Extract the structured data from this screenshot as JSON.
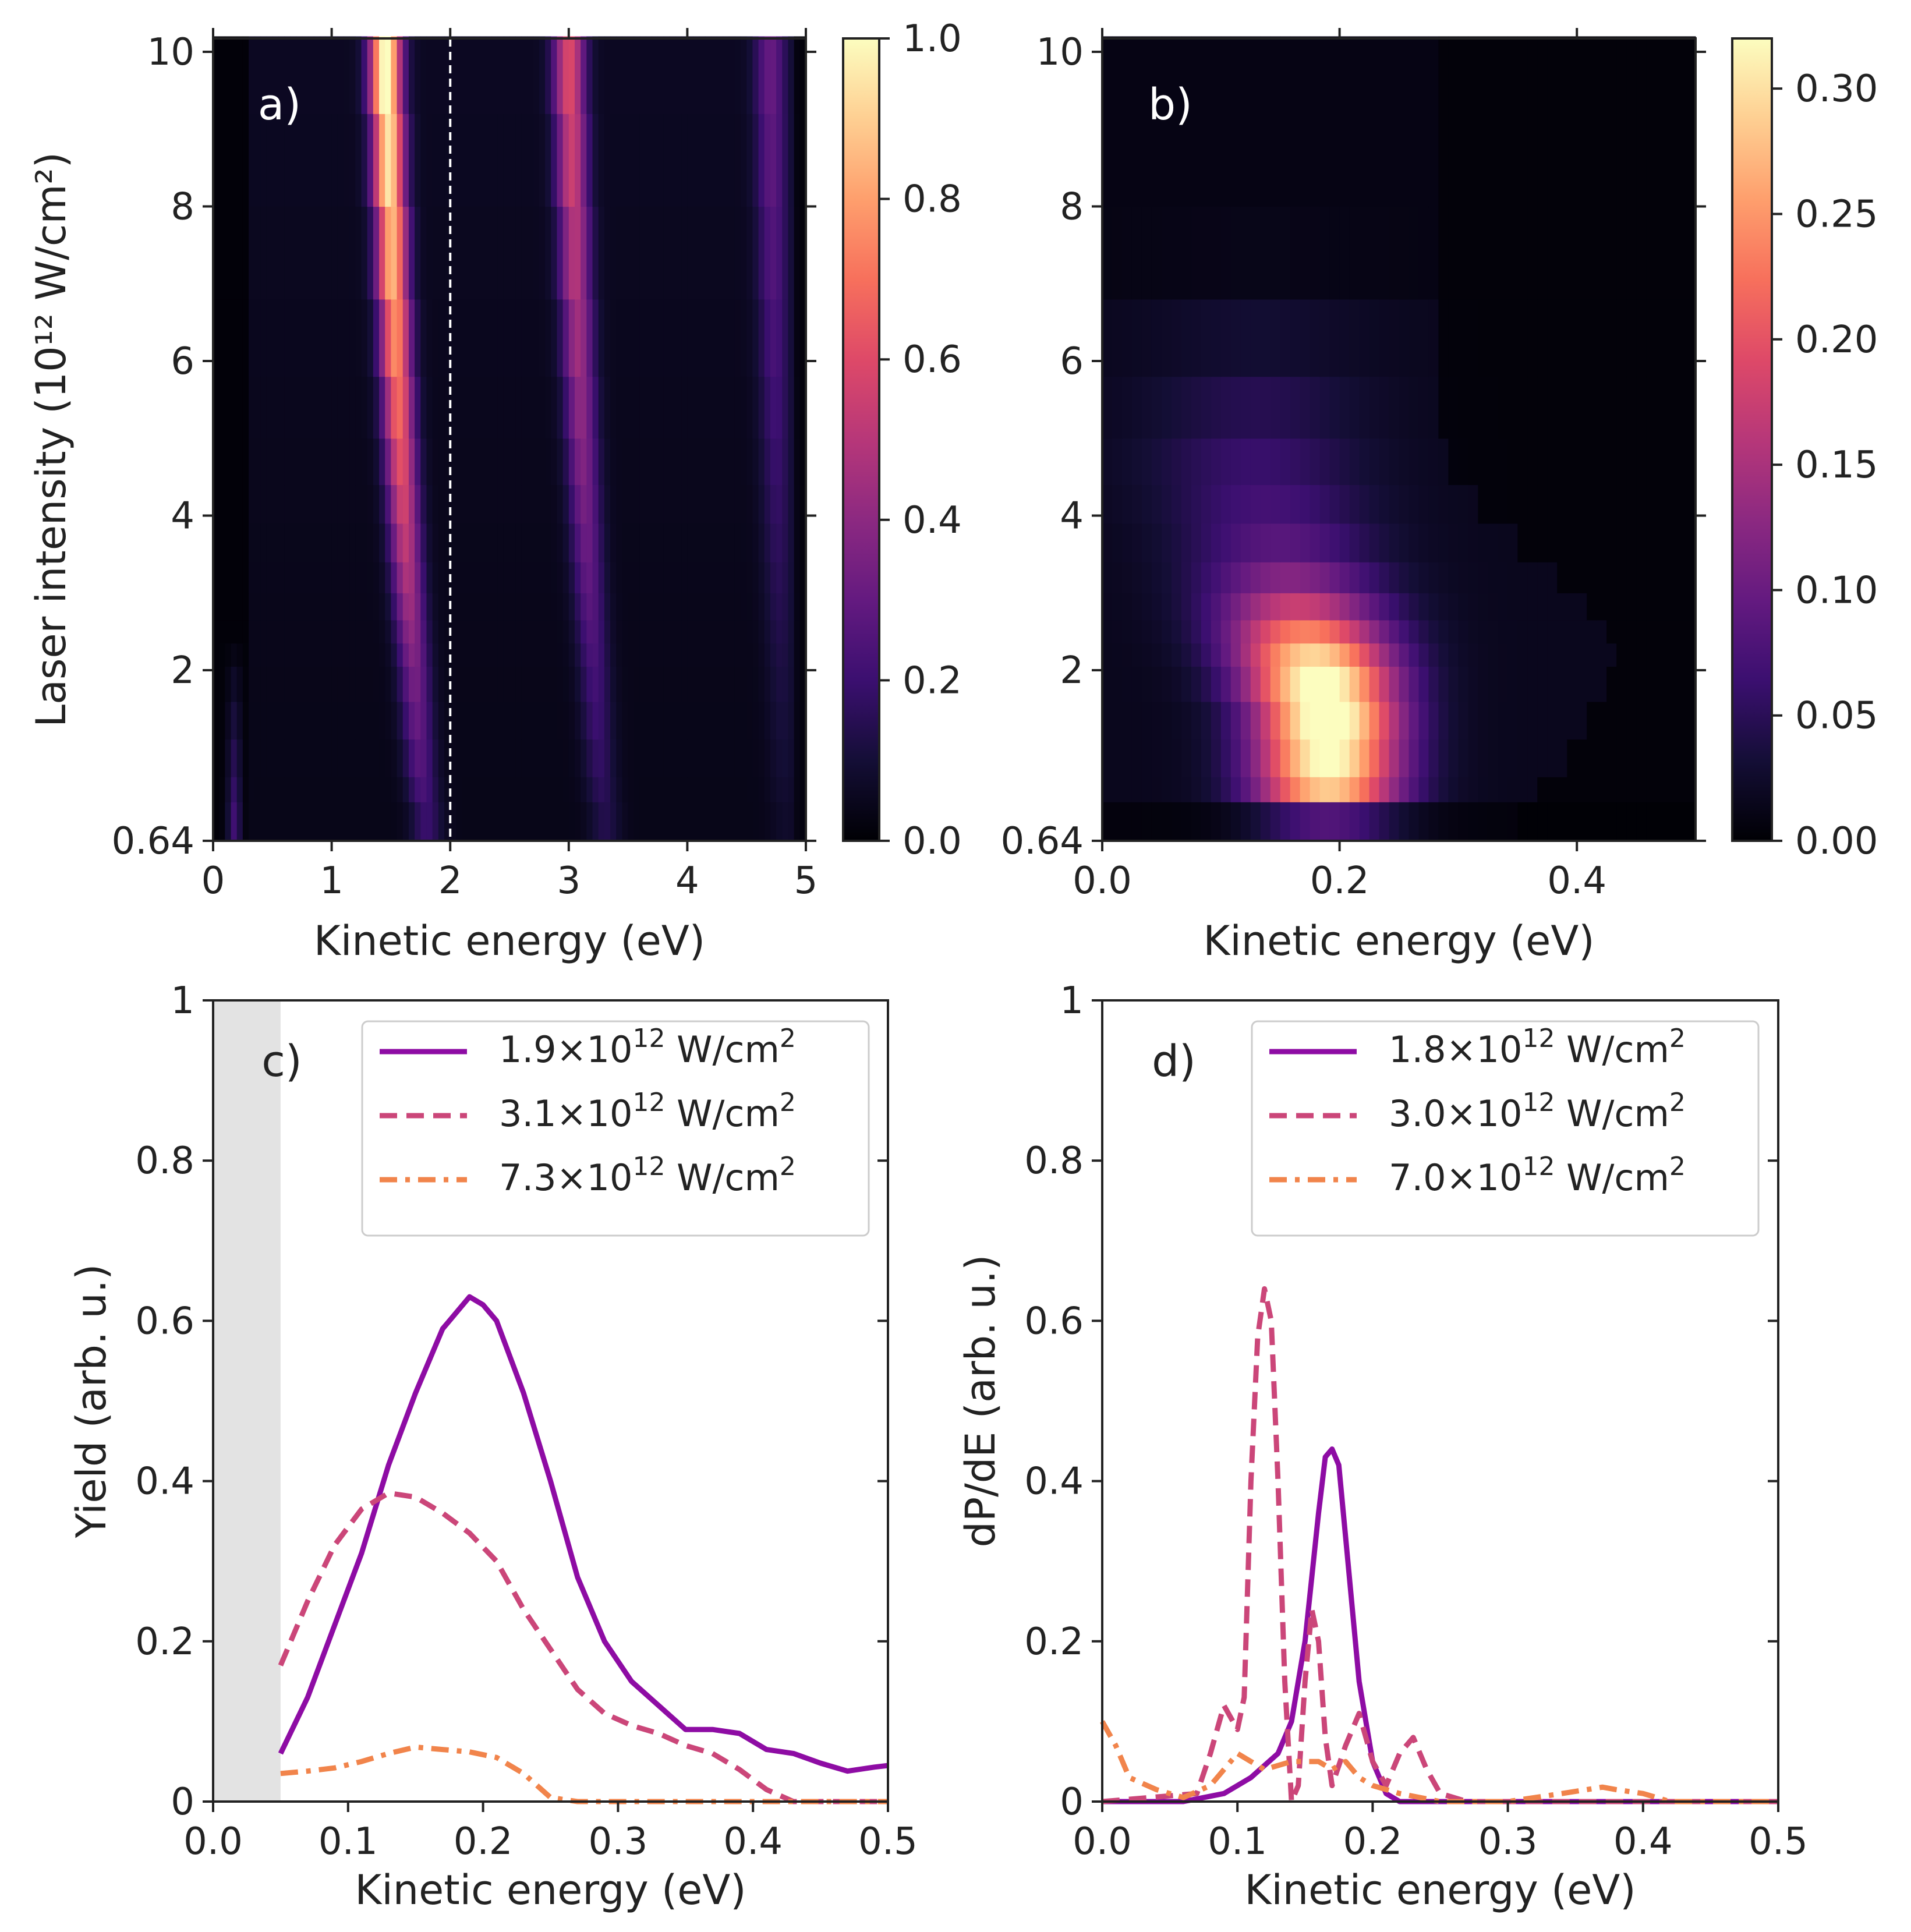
{
  "chart_data": [
    {
      "id": "a",
      "type": "heatmap",
      "panel_label": "a)",
      "xlabel": "Kinetic energy (eV)",
      "ylabel": "Laser intensity (10¹² W/cm²)",
      "xlim": [
        0,
        5
      ],
      "ylim": [
        0.64,
        10.2
      ],
      "xticks": [
        "0",
        "1",
        "2",
        "3",
        "4",
        "5"
      ],
      "yticks": [
        "0.64",
        "2",
        "4",
        "6",
        "8",
        "10"
      ],
      "marker_line_x": 2.0,
      "colorbar": {
        "min": 0,
        "max": 1.0,
        "ticks": [
          "0.0",
          "0.2",
          "0.4",
          "0.6",
          "0.8",
          "1.0"
        ]
      },
      "intensity_rows": [
        0.64,
        0.95,
        1.15,
        1.45,
        1.75,
        2.05,
        2.35,
        2.65,
        3.0,
        3.4,
        3.9,
        4.4,
        5.0,
        5.8,
        6.8,
        8.0,
        9.2,
        10.2
      ],
      "ridges": [
        {
          "name": "peak 1",
          "energy_at_low_I": 1.85,
          "energy_at_high_I": 1.45,
          "amplitude_low_I": 0.12,
          "amplitude_high_I": 1.0
        },
        {
          "name": "peak 2",
          "energy_at_low_I": 3.35,
          "energy_at_high_I": 3.0,
          "amplitude_low_I": 0.08,
          "amplitude_high_I": 0.55
        },
        {
          "name": "peak 3",
          "energy_at_low_I": 4.85,
          "energy_at_high_I": 4.7,
          "amplitude_low_I": 0.03,
          "amplitude_high_I": 0.25
        },
        {
          "name": "low-energy peak",
          "energy": 0.18,
          "present_below_I": 2.4,
          "amplitude": 0.3
        }
      ]
    },
    {
      "id": "b",
      "type": "heatmap",
      "panel_label": "b)",
      "xlabel": "Kinetic energy (eV)",
      "ylabel": "",
      "xlim": [
        0,
        0.5
      ],
      "ylim": [
        0.64,
        10.2
      ],
      "xticks": [
        "0.0",
        "0.2",
        "0.4"
      ],
      "yticks": [
        "0.64",
        "2",
        "4",
        "6",
        "8",
        "10"
      ],
      "colorbar": {
        "min": 0,
        "max": 0.32,
        "ticks": [
          "0.00",
          "0.05",
          "0.10",
          "0.15",
          "0.20",
          "0.25",
          "0.30"
        ]
      },
      "peak_value": 0.32,
      "peak_location": {
        "energy": 0.19,
        "intensity": 1.6
      }
    },
    {
      "id": "c",
      "type": "line",
      "panel_label": "c)",
      "xlabel": "Kinetic energy (eV)",
      "ylabel": "Yield (arb. u.)",
      "xlim": [
        0,
        0.5
      ],
      "ylim": [
        0,
        1
      ],
      "xticks": [
        "0.0",
        "0.1",
        "0.2",
        "0.3",
        "0.4",
        "0.5"
      ],
      "yticks": [
        "0",
        "0.2",
        "0.4",
        "0.6",
        "0.8",
        "1"
      ],
      "shaded_region": [
        0,
        0.05
      ],
      "series": [
        {
          "name": "1.9×10¹² W/cm²",
          "mantissa": "1.9",
          "style": "solid",
          "color": "#8e0ca4",
          "x": [
            0.05,
            0.07,
            0.09,
            0.11,
            0.13,
            0.15,
            0.17,
            0.19,
            0.2,
            0.21,
            0.23,
            0.25,
            0.27,
            0.29,
            0.31,
            0.33,
            0.35,
            0.37,
            0.39,
            0.41,
            0.43,
            0.45,
            0.47,
            0.49,
            0.5
          ],
          "y": [
            0.06,
            0.13,
            0.22,
            0.31,
            0.42,
            0.51,
            0.59,
            0.63,
            0.62,
            0.6,
            0.51,
            0.4,
            0.28,
            0.2,
            0.15,
            0.12,
            0.09,
            0.09,
            0.085,
            0.065,
            0.06,
            0.048,
            0.038,
            0.043,
            0.045
          ]
        },
        {
          "name": "3.1×10¹² W/cm²",
          "mantissa": "3.1",
          "style": "dashed",
          "color": "#cb4679",
          "x": [
            0.05,
            0.07,
            0.09,
            0.11,
            0.13,
            0.15,
            0.17,
            0.19,
            0.21,
            0.23,
            0.25,
            0.27,
            0.29,
            0.31,
            0.33,
            0.35,
            0.37,
            0.39,
            0.41,
            0.43,
            0.45,
            0.5
          ],
          "y": [
            0.17,
            0.25,
            0.32,
            0.365,
            0.385,
            0.38,
            0.36,
            0.335,
            0.3,
            0.24,
            0.19,
            0.14,
            0.11,
            0.095,
            0.085,
            0.07,
            0.06,
            0.04,
            0.015,
            0.0,
            0.0,
            0.0
          ]
        },
        {
          "name": "7.3×10¹² W/cm²",
          "mantissa": "7.3",
          "style": "dashdot",
          "color": "#f1844b",
          "x": [
            0.05,
            0.07,
            0.09,
            0.11,
            0.13,
            0.15,
            0.17,
            0.19,
            0.21,
            0.23,
            0.25,
            0.27,
            0.3,
            0.35,
            0.4,
            0.45,
            0.5
          ],
          "y": [
            0.035,
            0.038,
            0.042,
            0.05,
            0.06,
            0.068,
            0.065,
            0.062,
            0.055,
            0.035,
            0.005,
            0.0,
            0.0,
            0.0,
            0.0,
            0.0,
            0.0
          ]
        }
      ]
    },
    {
      "id": "d",
      "type": "line",
      "panel_label": "d)",
      "xlabel": "Kinetic energy (eV)",
      "ylabel": "dP/dE (arb. u.)",
      "xlim": [
        0,
        0.5
      ],
      "ylim": [
        0,
        1
      ],
      "xticks": [
        "0.0",
        "0.1",
        "0.2",
        "0.3",
        "0.4",
        "0.5"
      ],
      "yticks": [
        "0",
        "0.2",
        "0.4",
        "0.6",
        "0.8",
        "1"
      ],
      "series": [
        {
          "name": "1.8×10¹² W/cm²",
          "mantissa": "1.8",
          "style": "solid",
          "color": "#8e0ca4",
          "x": [
            0.0,
            0.06,
            0.09,
            0.11,
            0.13,
            0.14,
            0.15,
            0.16,
            0.165,
            0.17,
            0.175,
            0.18,
            0.19,
            0.2,
            0.21,
            0.22,
            0.3,
            0.5
          ],
          "y": [
            0.0,
            0.0,
            0.01,
            0.03,
            0.06,
            0.1,
            0.2,
            0.36,
            0.43,
            0.44,
            0.42,
            0.33,
            0.15,
            0.05,
            0.01,
            0.0,
            0.0,
            0.0
          ]
        },
        {
          "name": "3.0×10¹² W/cm²",
          "mantissa": "3.0",
          "style": "dashed",
          "color": "#cb4679",
          "x": [
            0.0,
            0.07,
            0.08,
            0.09,
            0.1,
            0.105,
            0.11,
            0.115,
            0.12,
            0.125,
            0.13,
            0.135,
            0.14,
            0.145,
            0.15,
            0.155,
            0.16,
            0.165,
            0.17,
            0.18,
            0.19,
            0.2,
            0.21,
            0.22,
            0.23,
            0.24,
            0.25,
            0.27,
            0.5
          ],
          "y": [
            0.0,
            0.01,
            0.06,
            0.12,
            0.09,
            0.13,
            0.4,
            0.58,
            0.64,
            0.6,
            0.4,
            0.15,
            0.0,
            0.02,
            0.15,
            0.24,
            0.2,
            0.08,
            0.02,
            0.07,
            0.11,
            0.05,
            0.02,
            0.06,
            0.08,
            0.04,
            0.01,
            0.0,
            0.0
          ]
        },
        {
          "name": "7.0×10¹² W/cm²",
          "mantissa": "7.0",
          "style": "dashdot",
          "color": "#f1844b",
          "x": [
            0.0,
            0.01,
            0.02,
            0.04,
            0.06,
            0.08,
            0.09,
            0.1,
            0.11,
            0.12,
            0.14,
            0.16,
            0.17,
            0.18,
            0.19,
            0.2,
            0.22,
            0.25,
            0.3,
            0.34,
            0.37,
            0.38,
            0.4,
            0.42,
            0.5
          ],
          "y": [
            0.1,
            0.07,
            0.03,
            0.015,
            0.005,
            0.02,
            0.04,
            0.06,
            0.05,
            0.04,
            0.05,
            0.05,
            0.04,
            0.05,
            0.03,
            0.02,
            0.01,
            0.0,
            0.0,
            0.01,
            0.018,
            0.015,
            0.01,
            0.0,
            0.0
          ]
        }
      ]
    }
  ]
}
